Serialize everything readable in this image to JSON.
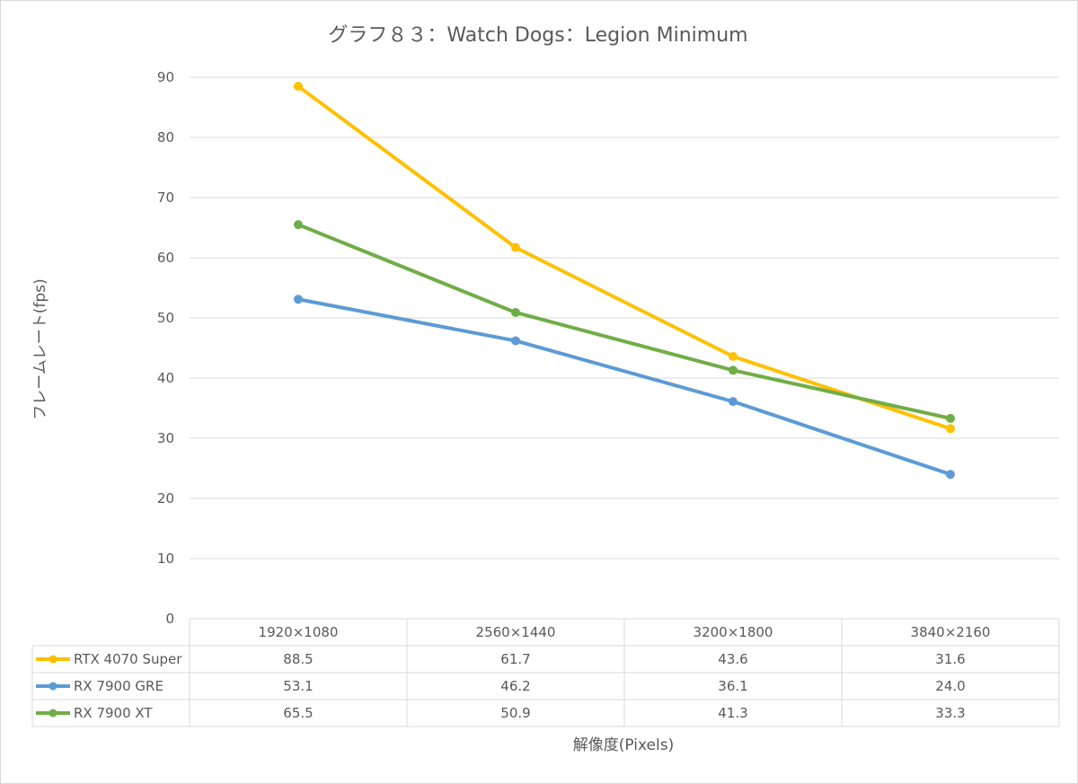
{
  "chart_data": {
    "type": "line",
    "title": "グラフ８３：Watch Dogs：Legion Minimum",
    "xlabel": "解像度(Pixels)",
    "ylabel": "フレームレート(fps)",
    "ylim": [
      0,
      90
    ],
    "yticks": [
      0,
      10,
      20,
      30,
      40,
      50,
      60,
      70,
      80,
      90
    ],
    "grid": true,
    "legend": "data-table",
    "categories": [
      "1920×1080",
      "2560×1440",
      "3200×1800",
      "3840×2160"
    ],
    "series": [
      {
        "name": "RTX 4070 Super",
        "color": "#ffc000",
        "values": [
          88.5,
          61.7,
          43.6,
          31.6
        ],
        "labels": [
          "88.5",
          "61.7",
          "43.6",
          "31.6"
        ]
      },
      {
        "name": "RX 7900 GRE",
        "color": "#5b9bd5",
        "values": [
          53.1,
          46.2,
          36.1,
          24.0
        ],
        "labels": [
          "53.1",
          "46.2",
          "36.1",
          "24.0"
        ]
      },
      {
        "name": "RX 7900 XT",
        "color": "#70ad47",
        "values": [
          65.5,
          50.9,
          41.3,
          33.3
        ],
        "labels": [
          "65.5",
          "50.9",
          "41.3",
          "33.3"
        ]
      }
    ]
  }
}
